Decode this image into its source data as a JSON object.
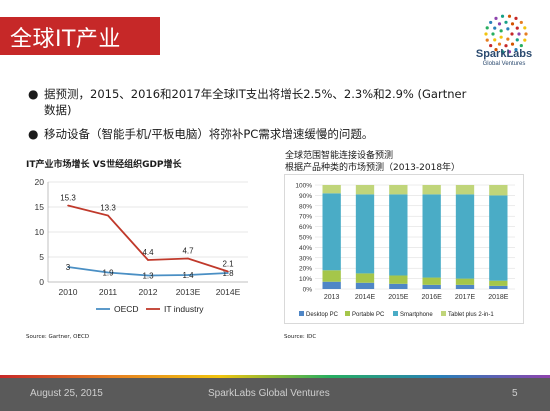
{
  "slide": {
    "title": "全球IT产业",
    "page_number": "5"
  },
  "logo": {
    "name": "SparkLabs",
    "sub": "Global Ventures"
  },
  "bullets": [
    "据预测，2015、2016和2017年全球IT支出将增长2.5%、2.3%和2.9% (Gartner数据)",
    "移动设备（智能手机/平板电脑）将弥补PC需求增速缓慢的问题。"
  ],
  "footer": {
    "date": "August 25, 2015",
    "org": "SparkLabs Global Ventures",
    "page": "5"
  },
  "colors": {
    "title_red": "#c62828",
    "oecd": "#4a8fc4",
    "it": "#c0392b",
    "desktop": "#4f86c6",
    "portable": "#a5c64a",
    "smartphone": "#4aacc6",
    "tablet": "#c0d57a"
  },
  "chart_data": [
    {
      "type": "line",
      "title": "IT产业市场增长 VS世经组织GDP增长",
      "categories": [
        "2010",
        "2011",
        "2012",
        "2013E",
        "2014E"
      ],
      "ylim": [
        0,
        20
      ],
      "yticks": [
        "0",
        "5",
        "10",
        "15",
        "20"
      ],
      "grid": true,
      "legend": "bottom",
      "series": [
        {
          "name": "OECD",
          "values": [
            3,
            1.9,
            1.3,
            1.4,
            1.8
          ],
          "labels": [
            "3",
            "1.9",
            "1.3",
            "1.4",
            "1.8"
          ]
        },
        {
          "name": "IT industry",
          "values": [
            15.3,
            13.3,
            4.4,
            4.7,
            2.1
          ],
          "labels": [
            "15.3",
            "13.3",
            "4.4",
            "4.7",
            "2.1"
          ]
        }
      ],
      "source": "Source: Gartner, OECD"
    },
    {
      "type": "bar",
      "stacked": true,
      "percent": true,
      "title": "全球范围智能连接设备预测",
      "subtitle": "根据产品种类的市场预测（2013-2018年）",
      "categories": [
        "2013",
        "2014E",
        "2015E",
        "2016E",
        "2017E",
        "2018E"
      ],
      "ylim": [
        0,
        100
      ],
      "yticks": [
        "0%",
        "10%",
        "20%",
        "30%",
        "40%",
        "50%",
        "60%",
        "70%",
        "80%",
        "90%",
        "100%"
      ],
      "legend": "bottom",
      "series": [
        {
          "name": "Desktop PC",
          "values": [
            7,
            6,
            5,
            4,
            4,
            3
          ]
        },
        {
          "name": "Portable PC",
          "values": [
            11,
            9,
            8,
            7,
            6,
            5
          ]
        },
        {
          "name": "Smartphone",
          "values": [
            74,
            76,
            78,
            80,
            81,
            82
          ]
        },
        {
          "name": "Tablet plus 2-in-1",
          "values": [
            8,
            9,
            9,
            9,
            9,
            10
          ]
        }
      ],
      "source": "Source: IDC"
    }
  ]
}
